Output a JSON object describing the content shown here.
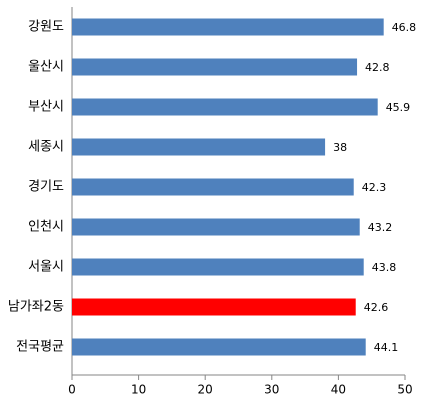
{
  "chart_data": {
    "type": "barh",
    "categories": [
      "강원도",
      "울산시",
      "부산시",
      "세종시",
      "경기도",
      "인천시",
      "서울시",
      "남가좌2동",
      "전국평균"
    ],
    "values": [
      46.8,
      42.8,
      45.9,
      38,
      42.3,
      43.2,
      43.8,
      42.6,
      44.1
    ],
    "colors": [
      "#4f81bd",
      "#4f81bd",
      "#4f81bd",
      "#4f81bd",
      "#4f81bd",
      "#4f81bd",
      "#4f81bd",
      "#ff0000",
      "#4f81bd"
    ],
    "xlim": [
      0,
      50
    ],
    "xticks": [
      0,
      10,
      20,
      30,
      40,
      50
    ],
    "grid": false
  }
}
